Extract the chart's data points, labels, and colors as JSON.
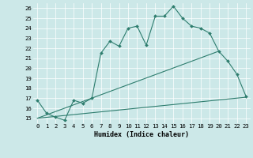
{
  "xlabel": "Humidex (Indice chaleur)",
  "bg_color": "#cce8e8",
  "line_color": "#2e7d6e",
  "xlim": [
    -0.5,
    23.5
  ],
  "ylim": [
    14.5,
    26.5
  ],
  "yticks": [
    15,
    16,
    17,
    18,
    19,
    20,
    21,
    22,
    23,
    24,
    25,
    26
  ],
  "xticks": [
    0,
    1,
    2,
    3,
    4,
    5,
    6,
    7,
    8,
    9,
    10,
    11,
    12,
    13,
    14,
    15,
    16,
    17,
    18,
    19,
    20,
    21,
    22,
    23
  ],
  "line1_x": [
    0,
    1,
    2,
    3,
    4,
    5,
    6,
    7,
    8,
    9,
    10,
    11,
    12,
    13,
    14,
    15,
    16,
    17,
    18,
    19,
    20,
    21,
    22,
    23
  ],
  "line1_y": [
    16.8,
    15.5,
    15.1,
    14.8,
    16.8,
    16.5,
    17.0,
    21.5,
    22.7,
    22.2,
    24.0,
    24.2,
    22.3,
    25.2,
    25.2,
    26.2,
    25.0,
    24.2,
    24.0,
    23.5,
    21.7,
    20.7,
    19.4,
    17.2
  ],
  "line2_x": [
    0,
    20
  ],
  "line2_y": [
    15.0,
    21.7
  ],
  "line3_x": [
    0,
    23
  ],
  "line3_y": [
    15.0,
    17.1
  ],
  "xlabel_fontsize": 6.0,
  "tick_fontsize": 5.2
}
